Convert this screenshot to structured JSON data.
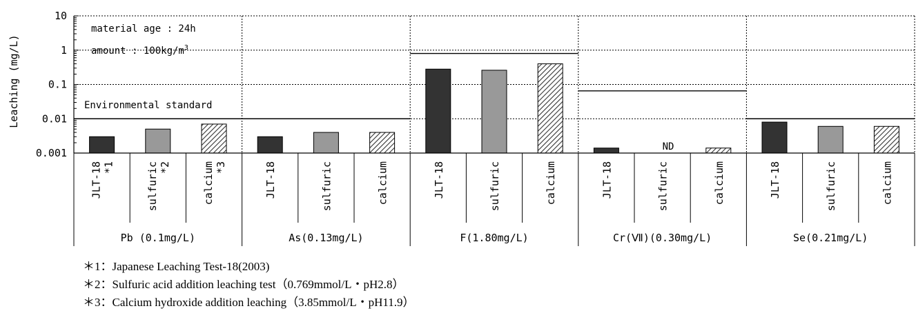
{
  "chart_data": {
    "type": "bar",
    "yscale": "log",
    "ylim": [
      0.001,
      10
    ],
    "ylabel": "Leaching (mg/L)",
    "yticks": [
      "10",
      "1",
      "0.1",
      "0.01",
      "0.001"
    ],
    "ytick_values": [
      10,
      1,
      0.1,
      0.01,
      0.001
    ],
    "categories": [
      {
        "label": "Pb (0.1mg/L)",
        "standard": 0.01
      },
      {
        "label": "As(0.13mg/L)",
        "standard": 0.01
      },
      {
        "label": "F(1.80mg/L)",
        "standard": 0.8
      },
      {
        "label": "Cr(Ⅶ)(0.30mg/L)",
        "standard": 0.065
      },
      {
        "label": "Se(0.21mg/L)",
        "standard": 0.01
      }
    ],
    "series": [
      {
        "key": "jlt18",
        "color": "#333333",
        "pattern": "solid",
        "values": [
          0.003,
          0.003,
          0.28,
          0.0014,
          0.008
        ]
      },
      {
        "key": "sulfuric",
        "color": "#999999",
        "pattern": "solid",
        "values": [
          0.005,
          0.004,
          0.26,
          null,
          0.006
        ]
      },
      {
        "key": "calcium",
        "color": "#ffffff",
        "pattern": "hatch",
        "values": [
          0.007,
          0.004,
          0.4,
          0.0014,
          0.006
        ]
      }
    ],
    "sub_labels_first": [
      "JLT-18\n*1",
      "sulfuric\n*2",
      "calcium\n*3"
    ],
    "sub_labels": [
      "JLT-18",
      "sulfuric",
      "calcium"
    ],
    "annotations": {
      "nd_label": "ND",
      "env_standard": "Environmental standard",
      "material_age": "material age  :  24h",
      "amount_prefix": "amount  :  100kg/m",
      "amount_sup": "3"
    },
    "grid": true
  },
  "footnotes": [
    "＊1：Japanese Leaching Test-18(2003)",
    "＊2：Sulfuric acid addition leaching test（0.769mmol/L・pH2.8）",
    "＊3：Calcium hydroxide addition leaching（3.85mmol/L・pH11.9）"
  ]
}
